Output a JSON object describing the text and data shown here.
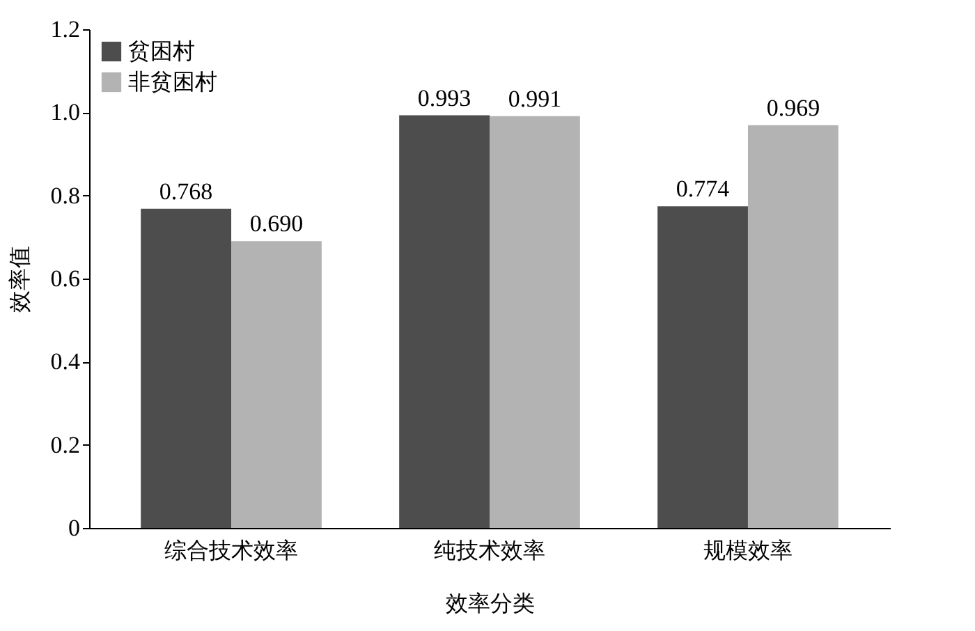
{
  "chart_data": {
    "type": "bar",
    "xlabel": "效率分类",
    "ylabel": "效率值",
    "categories": [
      "综合技术效率",
      "纯技术效率",
      "规模效率"
    ],
    "series": [
      {
        "name": "贫困村",
        "color": "#4d4d4d",
        "values": [
          0.768,
          0.993,
          0.774
        ],
        "value_labels": [
          "0.768",
          "0.993",
          "0.774"
        ]
      },
      {
        "name": "非贫困村",
        "color": "#b3b3b3",
        "values": [
          0.69,
          0.991,
          0.969
        ],
        "value_labels": [
          "0.690",
          "0.991",
          "0.969"
        ]
      }
    ],
    "ylim": [
      0,
      1.2
    ],
    "yticks": [
      0,
      0.2,
      0.4,
      0.6,
      0.8,
      {
        "value": 1,
        "label": "1.0"
      },
      1.2
    ],
    "legend": "top left",
    "grid": false
  }
}
